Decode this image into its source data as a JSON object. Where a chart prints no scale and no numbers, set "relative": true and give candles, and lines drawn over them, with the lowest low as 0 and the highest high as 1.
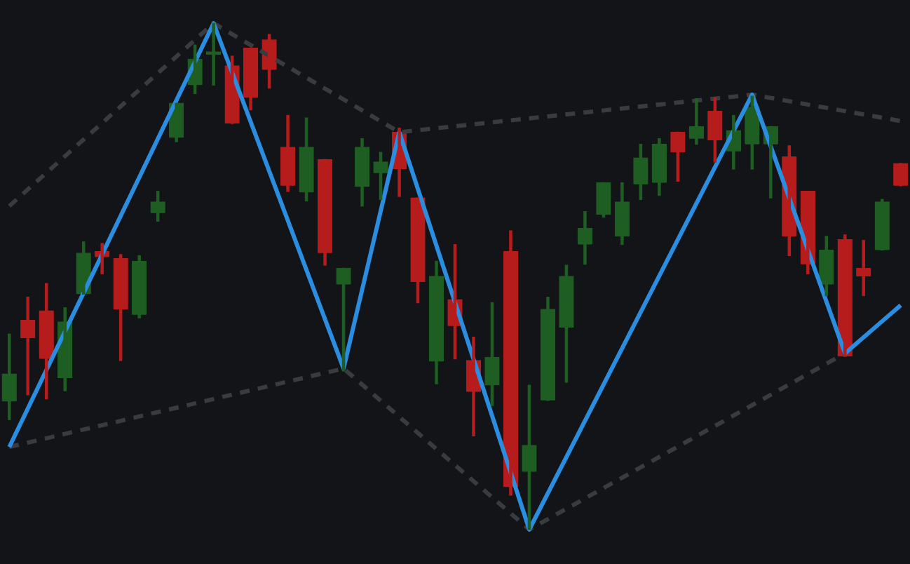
{
  "chart_data": {
    "type": "candlestick",
    "relative": true,
    "legend": false,
    "tick_labels": false,
    "categories": [
      null,
      null,
      null,
      null,
      null,
      null,
      null,
      null,
      null,
      null,
      null,
      null,
      null,
      null,
      null,
      null,
      null,
      null,
      null,
      null,
      null,
      null,
      null,
      null,
      null,
      null,
      null,
      null,
      null,
      null,
      null,
      null,
      null,
      null,
      null,
      null,
      null,
      null,
      null,
      null,
      null,
      null,
      null,
      null,
      null,
      null,
      null,
      null,
      null
    ],
    "ohlc": [
      [
        0.253,
        0.386,
        0.217,
        0.307
      ],
      [
        0.413,
        0.459,
        0.266,
        0.378
      ],
      [
        0.432,
        0.486,
        0.258,
        0.337
      ],
      [
        0.299,
        0.438,
        0.274,
        0.41
      ],
      [
        0.465,
        0.568,
        0.465,
        0.546
      ],
      [
        0.549,
        0.565,
        0.505,
        0.538
      ],
      [
        0.535,
        0.543,
        0.334,
        0.435
      ],
      [
        0.424,
        0.541,
        0.418,
        0.53
      ],
      [
        0.625,
        0.668,
        0.609,
        0.647
      ],
      [
        0.774,
        0.842,
        0.766,
        0.842
      ],
      [
        0.878,
        0.957,
        0.861,
        0.929
      ],
      [
        0.938,
        1,
        0.878,
        0.943
      ],
      [
        0.916,
        0.935,
        0.802,
        0.802
      ],
      [
        0.951,
        0.951,
        0.829,
        0.853
      ],
      [
        0.967,
        0.978,
        0.872,
        0.908
      ],
      [
        0.755,
        0.818,
        0.668,
        0.679
      ],
      [
        0.666,
        0.813,
        0.649,
        0.755
      ],
      [
        0.731,
        0.731,
        0.522,
        0.546
      ],
      [
        0.484,
        0.516,
        0.313,
        0.516
      ],
      [
        0.677,
        0.772,
        0.639,
        0.755
      ],
      [
        0.704,
        0.745,
        0.652,
        0.726
      ],
      [
        0.785,
        0.793,
        0.658,
        0.712
      ],
      [
        0.655,
        0.655,
        0.448,
        0.489
      ],
      [
        0.332,
        0.53,
        0.288,
        0.5
      ],
      [
        0.454,
        0.563,
        0.337,
        0.402
      ],
      [
        0.334,
        0.38,
        0.185,
        0.272
      ],
      [
        0.285,
        0.448,
        0.245,
        0.34
      ],
      [
        0.549,
        0.59,
        0.068,
        0.084
      ],
      [
        0.114,
        0.285,
        0,
        0.166
      ],
      [
        0.255,
        0.459,
        0.255,
        0.435
      ],
      [
        0.399,
        0.522,
        0.291,
        0.5
      ],
      [
        0.563,
        0.628,
        0.524,
        0.595
      ],
      [
        0.622,
        0.685,
        0.617,
        0.685
      ],
      [
        0.579,
        0.685,
        0.563,
        0.647
      ],
      [
        0.682,
        0.761,
        0.652,
        0.734
      ],
      [
        0.685,
        0.772,
        0.66,
        0.761
      ],
      [
        0.785,
        0.785,
        0.688,
        0.745
      ],
      [
        0.772,
        0.851,
        0.761,
        0.796
      ],
      [
        0.826,
        0.853,
        0.726,
        0.769
      ],
      [
        0.747,
        0.818,
        0.712,
        0.788
      ],
      [
        0.761,
        0.856,
        0.712,
        0.834
      ],
      [
        0.761,
        0.796,
        0.655,
        0.796
      ],
      [
        0.736,
        0.758,
        0.541,
        0.579
      ],
      [
        0.668,
        0.668,
        0.505,
        0.524
      ],
      [
        0.484,
        0.579,
        0.462,
        0.552
      ],
      [
        0.573,
        0.582,
        0.342,
        0.342
      ],
      [
        0.516,
        0.571,
        0.462,
        0.5
      ],
      [
        0.552,
        0.652,
        0.552,
        0.647
      ],
      [
        0.723,
        0.723,
        0.679,
        0.679
      ]
    ],
    "colors": [
      "#1e5e22",
      "#b71c1c",
      "#b71c1c",
      "#1e5e22",
      "#1e5e22",
      "#b71c1c",
      "#b71c1c",
      "#1e5e22",
      "#1e5e22",
      "#1e5e22",
      "#1e5e22",
      "#1e5e22",
      "#b71c1c",
      "#b71c1c",
      "#b71c1c",
      "#b71c1c",
      "#1e5e22",
      "#b71c1c",
      "#1e5e22",
      "#1e5e22",
      "#1e5e22",
      "#b71c1c",
      "#b71c1c",
      "#1e5e22",
      "#b71c1c",
      "#b71c1c",
      "#1e5e22",
      "#b71c1c",
      "#1e5e22",
      "#1e5e22",
      "#1e5e22",
      "#1e5e22",
      "#1e5e22",
      "#1e5e22",
      "#1e5e22",
      "#1e5e22",
      "#b71c1c",
      "#1e5e22",
      "#b71c1c",
      "#1e5e22",
      "#1e5e22",
      "#1e5e22",
      "#b71c1c",
      "#b71c1c",
      "#1e5e22",
      "#b71c1c",
      "#b71c1c",
      "#1e5e22",
      "#b71c1c"
    ],
    "series": [
      {
        "type": "line",
        "color": "#2a8de0",
        "line_style": "solid",
        "values": [
          0.163,
          null,
          null,
          null,
          null,
          null,
          null,
          null,
          null,
          null,
          null,
          1,
          null,
          null,
          null,
          null,
          null,
          null,
          0.318,
          null,
          null,
          0.785,
          null,
          null,
          null,
          null,
          null,
          null,
          0,
          null,
          null,
          null,
          null,
          null,
          null,
          null,
          null,
          null,
          null,
          null,
          0.859,
          null,
          null,
          null,
          null,
          0.348,
          null,
          null,
          0.443
        ]
      },
      {
        "type": "line",
        "color": "#3a3b40",
        "line_style": "dashed",
        "values": [
          0.639,
          null,
          null,
          null,
          null,
          null,
          null,
          null,
          null,
          null,
          null,
          1,
          null,
          null,
          null,
          null,
          null,
          null,
          null,
          null,
          null,
          0.785,
          null,
          null,
          null,
          null,
          null,
          null,
          null,
          null,
          null,
          null,
          null,
          null,
          null,
          null,
          null,
          null,
          null,
          null,
          0.859,
          null,
          null,
          null,
          null,
          null,
          null,
          null,
          0.807
        ]
      },
      {
        "type": "line",
        "color": "#3a3b40",
        "line_style": "dashed",
        "values": [
          0.163,
          null,
          null,
          null,
          null,
          null,
          null,
          null,
          null,
          null,
          null,
          null,
          null,
          null,
          null,
          null,
          null,
          null,
          0.318,
          null,
          null,
          null,
          null,
          null,
          null,
          null,
          null,
          null,
          0,
          null,
          null,
          null,
          null,
          null,
          null,
          null,
          null,
          null,
          null,
          null,
          null,
          null,
          null,
          null,
          null,
          0.348,
          null,
          null,
          null
        ]
      }
    ]
  }
}
